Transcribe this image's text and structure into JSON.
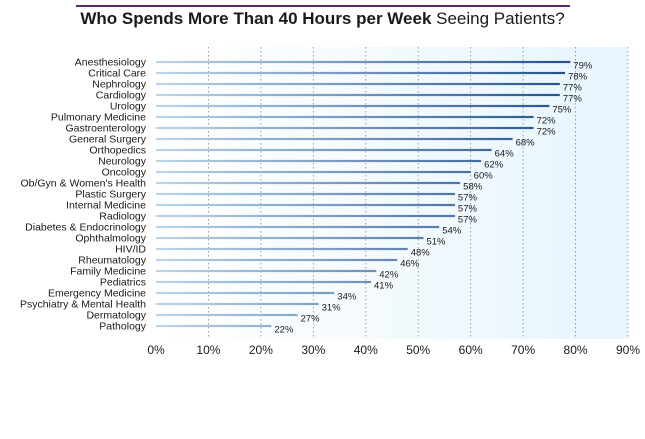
{
  "chart_data": {
    "type": "bar",
    "orientation": "horizontal",
    "title_bold": "Who Spends More Than 40 Hours per Week",
    "title_rest": " Seeing Patients?",
    "categories": [
      "Anesthesiology",
      "Critical Care",
      "Nephrology",
      "Cardiology",
      "Urology",
      "Pulmonary Medicine",
      "Gastroenterology",
      "General Surgery",
      "Orthopedics",
      "Neurology",
      "Oncology",
      "Ob/Gyn & Women's Health",
      "Plastic Surgery",
      "Internal Medicine",
      "Radiology",
      "Diabetes & Endocrinology",
      "Ophthalmology",
      "HIV/ID",
      "Rheumatology",
      "Family Medicine",
      "Pediatrics",
      "Emergency Medicine",
      "Psychiatry & Mental Health",
      "Dermatology",
      "Pathology"
    ],
    "values": [
      79,
      78,
      77,
      77,
      75,
      72,
      72,
      68,
      64,
      62,
      60,
      58,
      57,
      57,
      57,
      54,
      51,
      48,
      46,
      42,
      41,
      34,
      31,
      27,
      22
    ],
    "data_labels": [
      "79%",
      "78%",
      "77%",
      "77%",
      "75%",
      "72%",
      "72%",
      "68%",
      "64%",
      "62%",
      "60%",
      "58%",
      "57%",
      "57%",
      "57%",
      "54%",
      "51%",
      "48%",
      "46%",
      "42%",
      "41%",
      "34%",
      "31%",
      "27%",
      "22%"
    ],
    "xlim": [
      0,
      90
    ],
    "xticks": [
      0,
      10,
      20,
      30,
      40,
      50,
      60,
      70,
      80,
      90
    ],
    "xtick_labels": [
      "0%",
      "10%",
      "20%",
      "30%",
      "40%",
      "50%",
      "60%",
      "70%",
      "80%",
      "90%"
    ],
    "grid": true,
    "legend": "none",
    "colors": {
      "bar_start": "#bcd6ec",
      "bar_end": "#1f4e8c",
      "plot_bg_start": "#ffffff",
      "plot_bg_end": "#e7f5fd",
      "grid": "#8a8a8a",
      "title_rule": "#5a2a6e",
      "text": "#1a1a1a"
    }
  }
}
